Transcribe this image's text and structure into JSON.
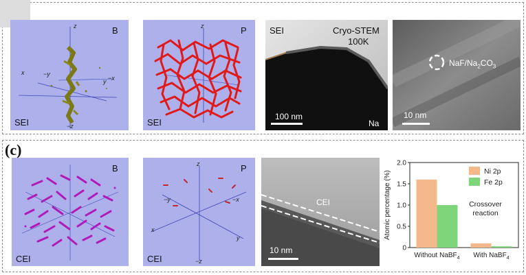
{
  "panel_b": {
    "tiles": {
      "sei_b": {
        "corner": "B",
        "bottom_label": "SEI",
        "axes": [
          "z",
          "x",
          "−y",
          "y",
          "−x",
          "−z"
        ]
      },
      "sei_p": {
        "corner": "P",
        "bottom_label": "SEI",
        "axes": [
          "z"
        ]
      },
      "stem": {
        "top_left": "SEI",
        "title": "Cryo-STEM",
        "temp": "100K",
        "scale": "100 nm",
        "bottom_right": "Na"
      },
      "hrtem": {
        "annotation_prefix": "NaF/Na",
        "annotation_sub": "2",
        "annotation_suffix": "CO",
        "annotation_sub2": "3",
        "scale": "10 nm"
      }
    }
  },
  "panel_c": {
    "label": "(c)",
    "tiles": {
      "cei_b": {
        "corner": "B",
        "bottom_label": "CEI"
      },
      "cei_p": {
        "corner": "P",
        "bottom_label": "CEI",
        "axes": [
          "z",
          "−y",
          "−x",
          "x",
          "y",
          "−z"
        ]
      },
      "tem": {
        "label": "CEI",
        "scale": "10 nm"
      }
    }
  },
  "chart_data": {
    "type": "bar",
    "categories": [
      "Without NaBF4",
      "With NaBF4"
    ],
    "category_display": [
      {
        "main": "Without NaBF",
        "sub": "4"
      },
      {
        "main": "With NaBF",
        "sub": "4"
      }
    ],
    "series": [
      {
        "name": "Ni 2p",
        "values": [
          1.6,
          0.1
        ],
        "color": "#f3b98a"
      },
      {
        "name": "Fe 2p",
        "values": [
          1.0,
          0.03
        ],
        "color": "#7fd67a"
      }
    ],
    "ylabel": "Atomic percentage (%)",
    "ylim": [
      0,
      2.0
    ],
    "yticks": [
      "0",
      "0.5",
      "1.0",
      "1.5",
      "2.0"
    ],
    "ytick_values": [
      0,
      0.5,
      1.0,
      1.5,
      2.0
    ],
    "annotation": [
      "Crossover",
      "reaction"
    ],
    "legend_position": "top-right"
  },
  "colors": {
    "tile_bg": "#adb0ea",
    "b_particles": "#7c7a16",
    "p_particles": "#e01a1a",
    "cei_particles": "#b01ab8",
    "axis_line": "#3d47b8"
  }
}
